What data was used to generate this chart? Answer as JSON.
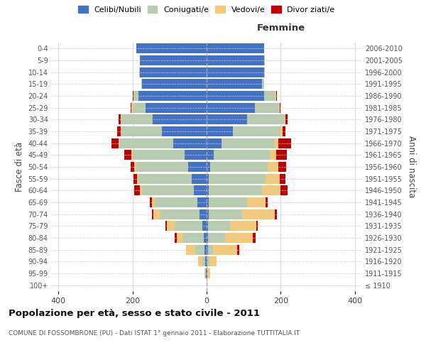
{
  "age_groups": [
    "100+",
    "95-99",
    "90-94",
    "85-89",
    "80-84",
    "75-79",
    "70-74",
    "65-69",
    "60-64",
    "55-59",
    "50-54",
    "45-49",
    "40-44",
    "35-39",
    "30-34",
    "25-29",
    "20-24",
    "15-19",
    "10-14",
    "5-9",
    "0-4"
  ],
  "birth_years": [
    "≤ 1910",
    "1911-1915",
    "1916-1920",
    "1921-1925",
    "1926-1930",
    "1931-1935",
    "1936-1940",
    "1941-1945",
    "1946-1950",
    "1951-1955",
    "1956-1960",
    "1961-1965",
    "1966-1970",
    "1971-1975",
    "1976-1980",
    "1981-1985",
    "1986-1990",
    "1991-1995",
    "1996-2000",
    "2001-2005",
    "2006-2010"
  ],
  "colors": {
    "celibe": "#4472C4",
    "coniugato": "#B8CCB0",
    "vedovo": "#F5C97A",
    "divorziato": "#C00000"
  },
  "male": {
    "celibe": [
      0,
      1,
      3,
      5,
      8,
      12,
      20,
      25,
      35,
      40,
      50,
      60,
      90,
      120,
      145,
      165,
      185,
      175,
      180,
      180,
      190
    ],
    "coniugato": [
      0,
      2,
      8,
      25,
      55,
      75,
      105,
      115,
      140,
      145,
      140,
      140,
      145,
      110,
      85,
      35,
      10,
      2,
      2,
      0,
      0
    ],
    "vedovo": [
      0,
      3,
      12,
      25,
      18,
      20,
      18,
      8,
      5,
      3,
      5,
      3,
      2,
      2,
      2,
      3,
      2,
      0,
      0,
      0,
      0
    ],
    "divorziato": [
      0,
      0,
      0,
      0,
      5,
      5,
      5,
      5,
      15,
      10,
      10,
      20,
      20,
      10,
      5,
      2,
      2,
      0,
      0,
      0,
      0
    ]
  },
  "female": {
    "nubile": [
      0,
      1,
      2,
      3,
      4,
      4,
      5,
      5,
      5,
      5,
      10,
      20,
      40,
      70,
      110,
      130,
      155,
      150,
      155,
      155,
      155
    ],
    "coniugata": [
      0,
      1,
      5,
      15,
      45,
      60,
      90,
      105,
      145,
      155,
      155,
      150,
      145,
      130,
      100,
      65,
      30,
      5,
      2,
      2,
      0
    ],
    "vedova": [
      1,
      8,
      20,
      65,
      75,
      70,
      90,
      50,
      50,
      38,
      28,
      18,
      8,
      5,
      3,
      2,
      2,
      0,
      0,
      0,
      0
    ],
    "divorziata": [
      0,
      0,
      0,
      5,
      8,
      5,
      5,
      5,
      18,
      14,
      22,
      28,
      35,
      8,
      6,
      3,
      2,
      0,
      0,
      0,
      0
    ]
  },
  "xlim": 420,
  "title": "Popolazione per età, sesso e stato civile - 2011",
  "subtitle": "COMUNE DI FOSSOMBRONE (PU) - Dati ISTAT 1° gennaio 2011 - Elaborazione TUTTITALIA.IT",
  "ylabel": "Fasce di età",
  "ylabel_right": "Anni di nascita",
  "background_color": "#ffffff",
  "bar_height": 0.85,
  "figsize": [
    6.0,
    5.0
  ],
  "dpi": 100
}
